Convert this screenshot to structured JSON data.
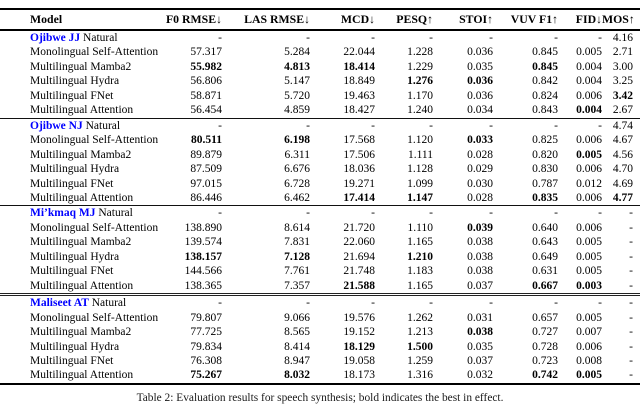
{
  "accent_color": "#0000FF",
  "caption": "Table 2: Evaluation results for speech synthesis; bold indicates the best in effect.",
  "columns": [
    "Model",
    "F0 RMSE↓",
    "LAS RMSE↓",
    "MCD↓",
    "PESQ↑",
    "STOI↑",
    "VUV F1↑",
    "FID↓",
    "MOS↑"
  ],
  "sections": [
    {
      "rows": [
        {
          "lang": "Ojibwe JJ",
          "label": "Natural",
          "values": [
            "-",
            "-",
            "-",
            "-",
            "-",
            "-",
            "-",
            "4.16"
          ],
          "bold": []
        },
        {
          "model": "Monolingual Self-Attention",
          "values": [
            "57.317",
            "5.284",
            "22.044",
            "1.228",
            "0.036",
            "0.845",
            "0.005",
            "2.71"
          ],
          "bold": []
        },
        {
          "model": "Multilingual Mamba2",
          "values": [
            "55.982",
            "4.813",
            "18.414",
            "1.229",
            "0.035",
            "0.845",
            "0.004",
            "3.00"
          ],
          "bold": [
            0,
            1,
            2,
            5
          ]
        },
        {
          "model": "Multilingual Hydra",
          "values": [
            "56.806",
            "5.147",
            "18.849",
            "1.276",
            "0.036",
            "0.842",
            "0.004",
            "3.25"
          ],
          "bold": [
            3,
            4
          ]
        },
        {
          "model": "Multilingual FNet",
          "values": [
            "58.871",
            "5.720",
            "19.463",
            "1.170",
            "0.036",
            "0.824",
            "0.006",
            "3.42"
          ],
          "bold": [
            7
          ]
        },
        {
          "model": "Multilingual Attention",
          "values": [
            "56.454",
            "4.859",
            "18.427",
            "1.240",
            "0.034",
            "0.843",
            "0.004",
            "2.67"
          ],
          "bold": [
            6
          ]
        }
      ]
    },
    {
      "rows": [
        {
          "lang": "Ojibwe NJ",
          "label": "Natural",
          "values": [
            "-",
            "-",
            "-",
            "-",
            "-",
            "-",
            "-",
            "4.74"
          ],
          "bold": []
        },
        {
          "model": "Monolingual Self-Attention",
          "values": [
            "80.511",
            "6.198",
            "17.568",
            "1.120",
            "0.033",
            "0.825",
            "0.006",
            "4.67"
          ],
          "bold": [
            0,
            1,
            4
          ]
        },
        {
          "model": "Multilingual Mamba2",
          "values": [
            "89.879",
            "6.311",
            "17.506",
            "1.111",
            "0.028",
            "0.820",
            "0.005",
            "4.56"
          ],
          "bold": [
            6
          ]
        },
        {
          "model": "Multilingual Hydra",
          "values": [
            "87.509",
            "6.676",
            "18.036",
            "1.128",
            "0.029",
            "0.830",
            "0.006",
            "4.70"
          ],
          "bold": []
        },
        {
          "model": "Multilingual FNet",
          "values": [
            "97.015",
            "6.728",
            "19.271",
            "1.099",
            "0.030",
            "0.787",
            "0.012",
            "4.69"
          ],
          "bold": []
        },
        {
          "model": "Multilingual Attention",
          "values": [
            "86.446",
            "6.462",
            "17.414",
            "1.147",
            "0.028",
            "0.835",
            "0.006",
            "4.77"
          ],
          "bold": [
            2,
            3,
            5,
            7
          ]
        }
      ]
    },
    {
      "rows": [
        {
          "lang": "Mi’kmaq MJ",
          "label": "Natural",
          "values": [
            "-",
            "-",
            "-",
            "-",
            "-",
            "-",
            "-",
            "-"
          ],
          "bold": []
        },
        {
          "model": "Monolingual Self-Attention",
          "values": [
            "138.890",
            "8.614",
            "21.720",
            "1.110",
            "0.039",
            "0.640",
            "0.006",
            "-"
          ],
          "bold": [
            4
          ]
        },
        {
          "model": "Multilingual Mamba2",
          "values": [
            "139.574",
            "7.831",
            "22.060",
            "1.165",
            "0.038",
            "0.643",
            "0.005",
            "-"
          ],
          "bold": []
        },
        {
          "model": "Multilingual Hydra",
          "values": [
            "138.157",
            "7.128",
            "21.694",
            "1.210",
            "0.038",
            "0.649",
            "0.005",
            "-"
          ],
          "bold": [
            0,
            1,
            3
          ]
        },
        {
          "model": "Multilingual FNet",
          "values": [
            "144.566",
            "7.761",
            "21.748",
            "1.183",
            "0.038",
            "0.631",
            "0.005",
            "-"
          ],
          "bold": []
        },
        {
          "model": "Multilingual Attention",
          "values": [
            "138.365",
            "7.357",
            "21.588",
            "1.165",
            "0.037",
            "0.667",
            "0.003",
            "-"
          ],
          "bold": [
            2,
            5,
            6
          ]
        }
      ]
    },
    {
      "rows": [
        {
          "lang": "Maliseet AT",
          "label": "Natural",
          "values": [
            "-",
            "-",
            "-",
            "-",
            "-",
            "-",
            "-",
            "-"
          ],
          "bold": []
        },
        {
          "model": "Monolingual Self-Attention",
          "values": [
            "79.807",
            "9.066",
            "19.576",
            "1.262",
            "0.031",
            "0.657",
            "0.005",
            "-"
          ],
          "bold": []
        },
        {
          "model": "Multilingual Mamba2",
          "values": [
            "77.725",
            "8.565",
            "19.152",
            "1.213",
            "0.038",
            "0.727",
            "0.007",
            "-"
          ],
          "bold": [
            4
          ]
        },
        {
          "model": "Multilingual Hydra",
          "values": [
            "79.834",
            "8.414",
            "18.129",
            "1.500",
            "0.035",
            "0.728",
            "0.006",
            "-"
          ],
          "bold": [
            2,
            3
          ]
        },
        {
          "model": "Multilingual FNet",
          "values": [
            "76.308",
            "8.947",
            "19.058",
            "1.259",
            "0.037",
            "0.723",
            "0.008",
            "-"
          ],
          "bold": []
        },
        {
          "model": "Multilingual Attention",
          "values": [
            "75.267",
            "8.032",
            "18.173",
            "1.316",
            "0.032",
            "0.742",
            "0.005",
            "-"
          ],
          "bold": [
            0,
            1,
            5,
            6
          ]
        }
      ]
    }
  ]
}
